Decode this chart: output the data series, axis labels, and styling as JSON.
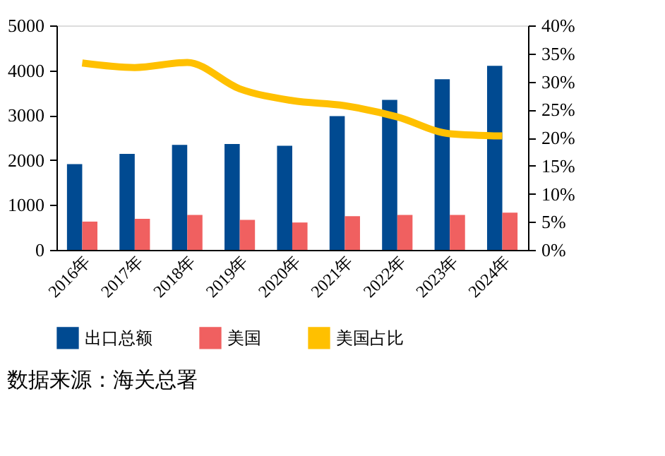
{
  "chart_data": {
    "type": "bar",
    "categories": [
      "2016年",
      "2017年",
      "2018年",
      "2019年",
      "2020年",
      "2021年",
      "2022年",
      "2023年",
      "2024年"
    ],
    "series": [
      {
        "name": "出口总额",
        "color": "#004a91",
        "values": [
          1910,
          2140,
          2340,
          2360,
          2320,
          2980,
          3340,
          3800,
          4100
        ]
      },
      {
        "name": "美国",
        "color": "#f06060",
        "values": [
          630,
          690,
          780,
          670,
          610,
          750,
          780,
          780,
          830
        ]
      },
      {
        "name": "美国占比",
        "type": "line",
        "axis": "y2",
        "color": "#ffc000",
        "values": [
          33.3,
          32.5,
          33.4,
          28.7,
          26.6,
          25.7,
          23.7,
          20.7,
          20.3
        ]
      }
    ],
    "ylim": [
      0,
      5000
    ],
    "yticks": [
      0,
      1000,
      2000,
      3000,
      4000,
      5000
    ],
    "y2lim": [
      0,
      40
    ],
    "y2ticks": [
      {
        "value": 0,
        "label": "0%"
      },
      {
        "value": 5,
        "label": "5%"
      },
      {
        "value": 10,
        "label": "10%"
      },
      {
        "value": 15,
        "label": "15%"
      },
      {
        "value": 20,
        "label": "20%"
      },
      {
        "value": 25,
        "label": "25%"
      },
      {
        "value": 30,
        "label": "30%"
      },
      {
        "value": 35,
        "label": "35%"
      },
      {
        "value": 40,
        "label": "40%"
      }
    ],
    "legend": "bottom",
    "grid": false,
    "annotations": [
      "数据来源：海关总署"
    ]
  }
}
